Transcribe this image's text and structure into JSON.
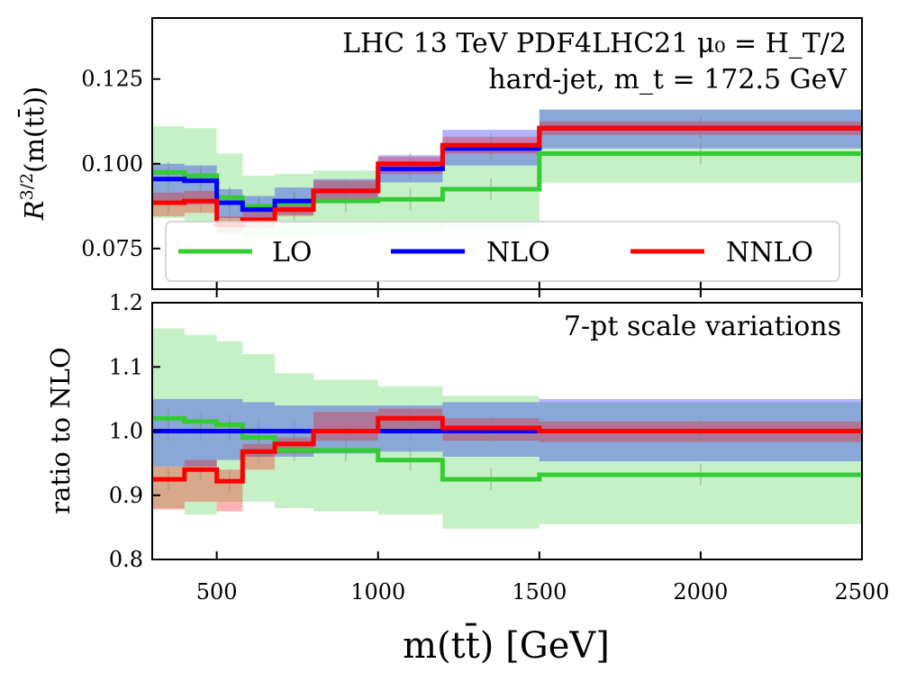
{
  "chart_data": {
    "type": "line",
    "subtype": "step-histogram-with-bands",
    "x_edges": [
      300,
      400,
      500,
      580,
      680,
      800,
      1000,
      1200,
      1500,
      2500
    ],
    "xlim": [
      300,
      2500
    ],
    "xticks": [
      500,
      1000,
      1500,
      2000,
      2500
    ],
    "xlabel": "m(tt̄) [GeV]",
    "legend": {
      "placement": "bottom-left",
      "entries": [
        "LO",
        "NLO",
        "NNLO"
      ]
    },
    "colors": {
      "LO": "#33cc33",
      "NLO": "#0000ff",
      "NNLO": "#ff0000"
    },
    "panels": [
      {
        "ylabel": "R^{3/2}(m(tt̄))",
        "ylabel_main": "R",
        "ylabel_sup": "3/2",
        "ylabel_arg": "(m(tt̄))",
        "ylim": [
          0.063,
          0.143
        ],
        "yticks": [
          "0.075",
          "0.100",
          "0.125"
        ],
        "annotation_lines": [
          "LHC 13 TeV PDF4LHC21 μ₀ = H_T/2",
          "hard-jet, m_t = 172.5 GeV"
        ],
        "series": [
          {
            "name": "LO",
            "values": [
              0.0975,
              0.0965,
              0.09,
              0.0875,
              0.0883,
              0.089,
              0.0895,
              0.0925,
              0.103
            ],
            "band_low": [
              0.084,
              0.083,
              0.08,
              0.078,
              0.0785,
              0.079,
              0.0795,
              0.0815,
              0.0945
            ],
            "band_high": [
              0.111,
              0.1105,
              0.103,
              0.0965,
              0.097,
              0.098,
              0.099,
              0.1045,
              0.116
            ]
          },
          {
            "name": "NLO",
            "values": [
              0.0955,
              0.095,
              0.0885,
              0.0865,
              0.089,
              0.092,
              0.0985,
              0.1045,
              0.1105
            ],
            "band_low": [
              0.089,
              0.088,
              0.084,
              0.083,
              0.085,
              0.0885,
              0.0945,
              0.0995,
              0.1045
            ],
            "band_high": [
              0.1,
              0.0995,
              0.0925,
              0.0905,
              0.093,
              0.0955,
              0.1025,
              0.11,
              0.116
            ]
          },
          {
            "name": "NNLO",
            "values": [
              0.0885,
              0.089,
              0.082,
              0.0835,
              0.0865,
              0.092,
              0.1,
              0.1055,
              0.1105
            ],
            "band_low": [
              0.0845,
              0.0855,
              0.0795,
              0.081,
              0.0845,
              0.0895,
              0.097,
              0.103,
              0.1085
            ],
            "band_high": [
              0.0915,
              0.092,
              0.0845,
              0.086,
              0.089,
              0.095,
              0.102,
              0.108,
              0.1125
            ]
          }
        ]
      },
      {
        "ylabel": "ratio to NLO",
        "ylim": [
          0.8,
          1.2
        ],
        "yticks": [
          "0.8",
          "0.9",
          "1.0",
          "1.1",
          "1.2"
        ],
        "annotation_lines": [
          "7-pt scale variations"
        ],
        "series": [
          {
            "name": "LO",
            "values": [
              1.02,
              1.015,
              1.01,
              0.99,
              0.97,
              0.97,
              0.955,
              0.925,
              0.932
            ],
            "band_low": [
              0.88,
              0.87,
              0.89,
              0.89,
              0.88,
              0.875,
              0.87,
              0.848,
              0.855
            ],
            "band_high": [
              1.16,
              1.15,
              1.14,
              1.12,
              1.09,
              1.08,
              1.07,
              1.055,
              1.045
            ]
          },
          {
            "name": "NLO",
            "values": [
              1.0,
              1.0,
              1.0,
              1.0,
              1.0,
              1.0,
              1.0,
              1.0,
              1.0
            ],
            "band_low": [
              0.945,
              0.945,
              0.955,
              0.96,
              0.96,
              0.965,
              0.968,
              0.96,
              0.953
            ],
            "band_high": [
              1.05,
              1.05,
              1.05,
              1.045,
              1.04,
              1.04,
              1.04,
              1.045,
              1.05
            ]
          },
          {
            "name": "NNLO",
            "values": [
              0.925,
              0.94,
              0.922,
              0.968,
              0.98,
              1.0,
              1.02,
              1.005,
              1.0
            ],
            "band_low": [
              0.878,
              0.89,
              0.875,
              0.94,
              0.965,
              0.985,
              1.0,
              0.985,
              0.983
            ],
            "band_high": [
              0.945,
              0.955,
              0.94,
              0.98,
              0.99,
              1.03,
              1.035,
              1.02,
              1.015
            ]
          }
        ]
      }
    ]
  }
}
